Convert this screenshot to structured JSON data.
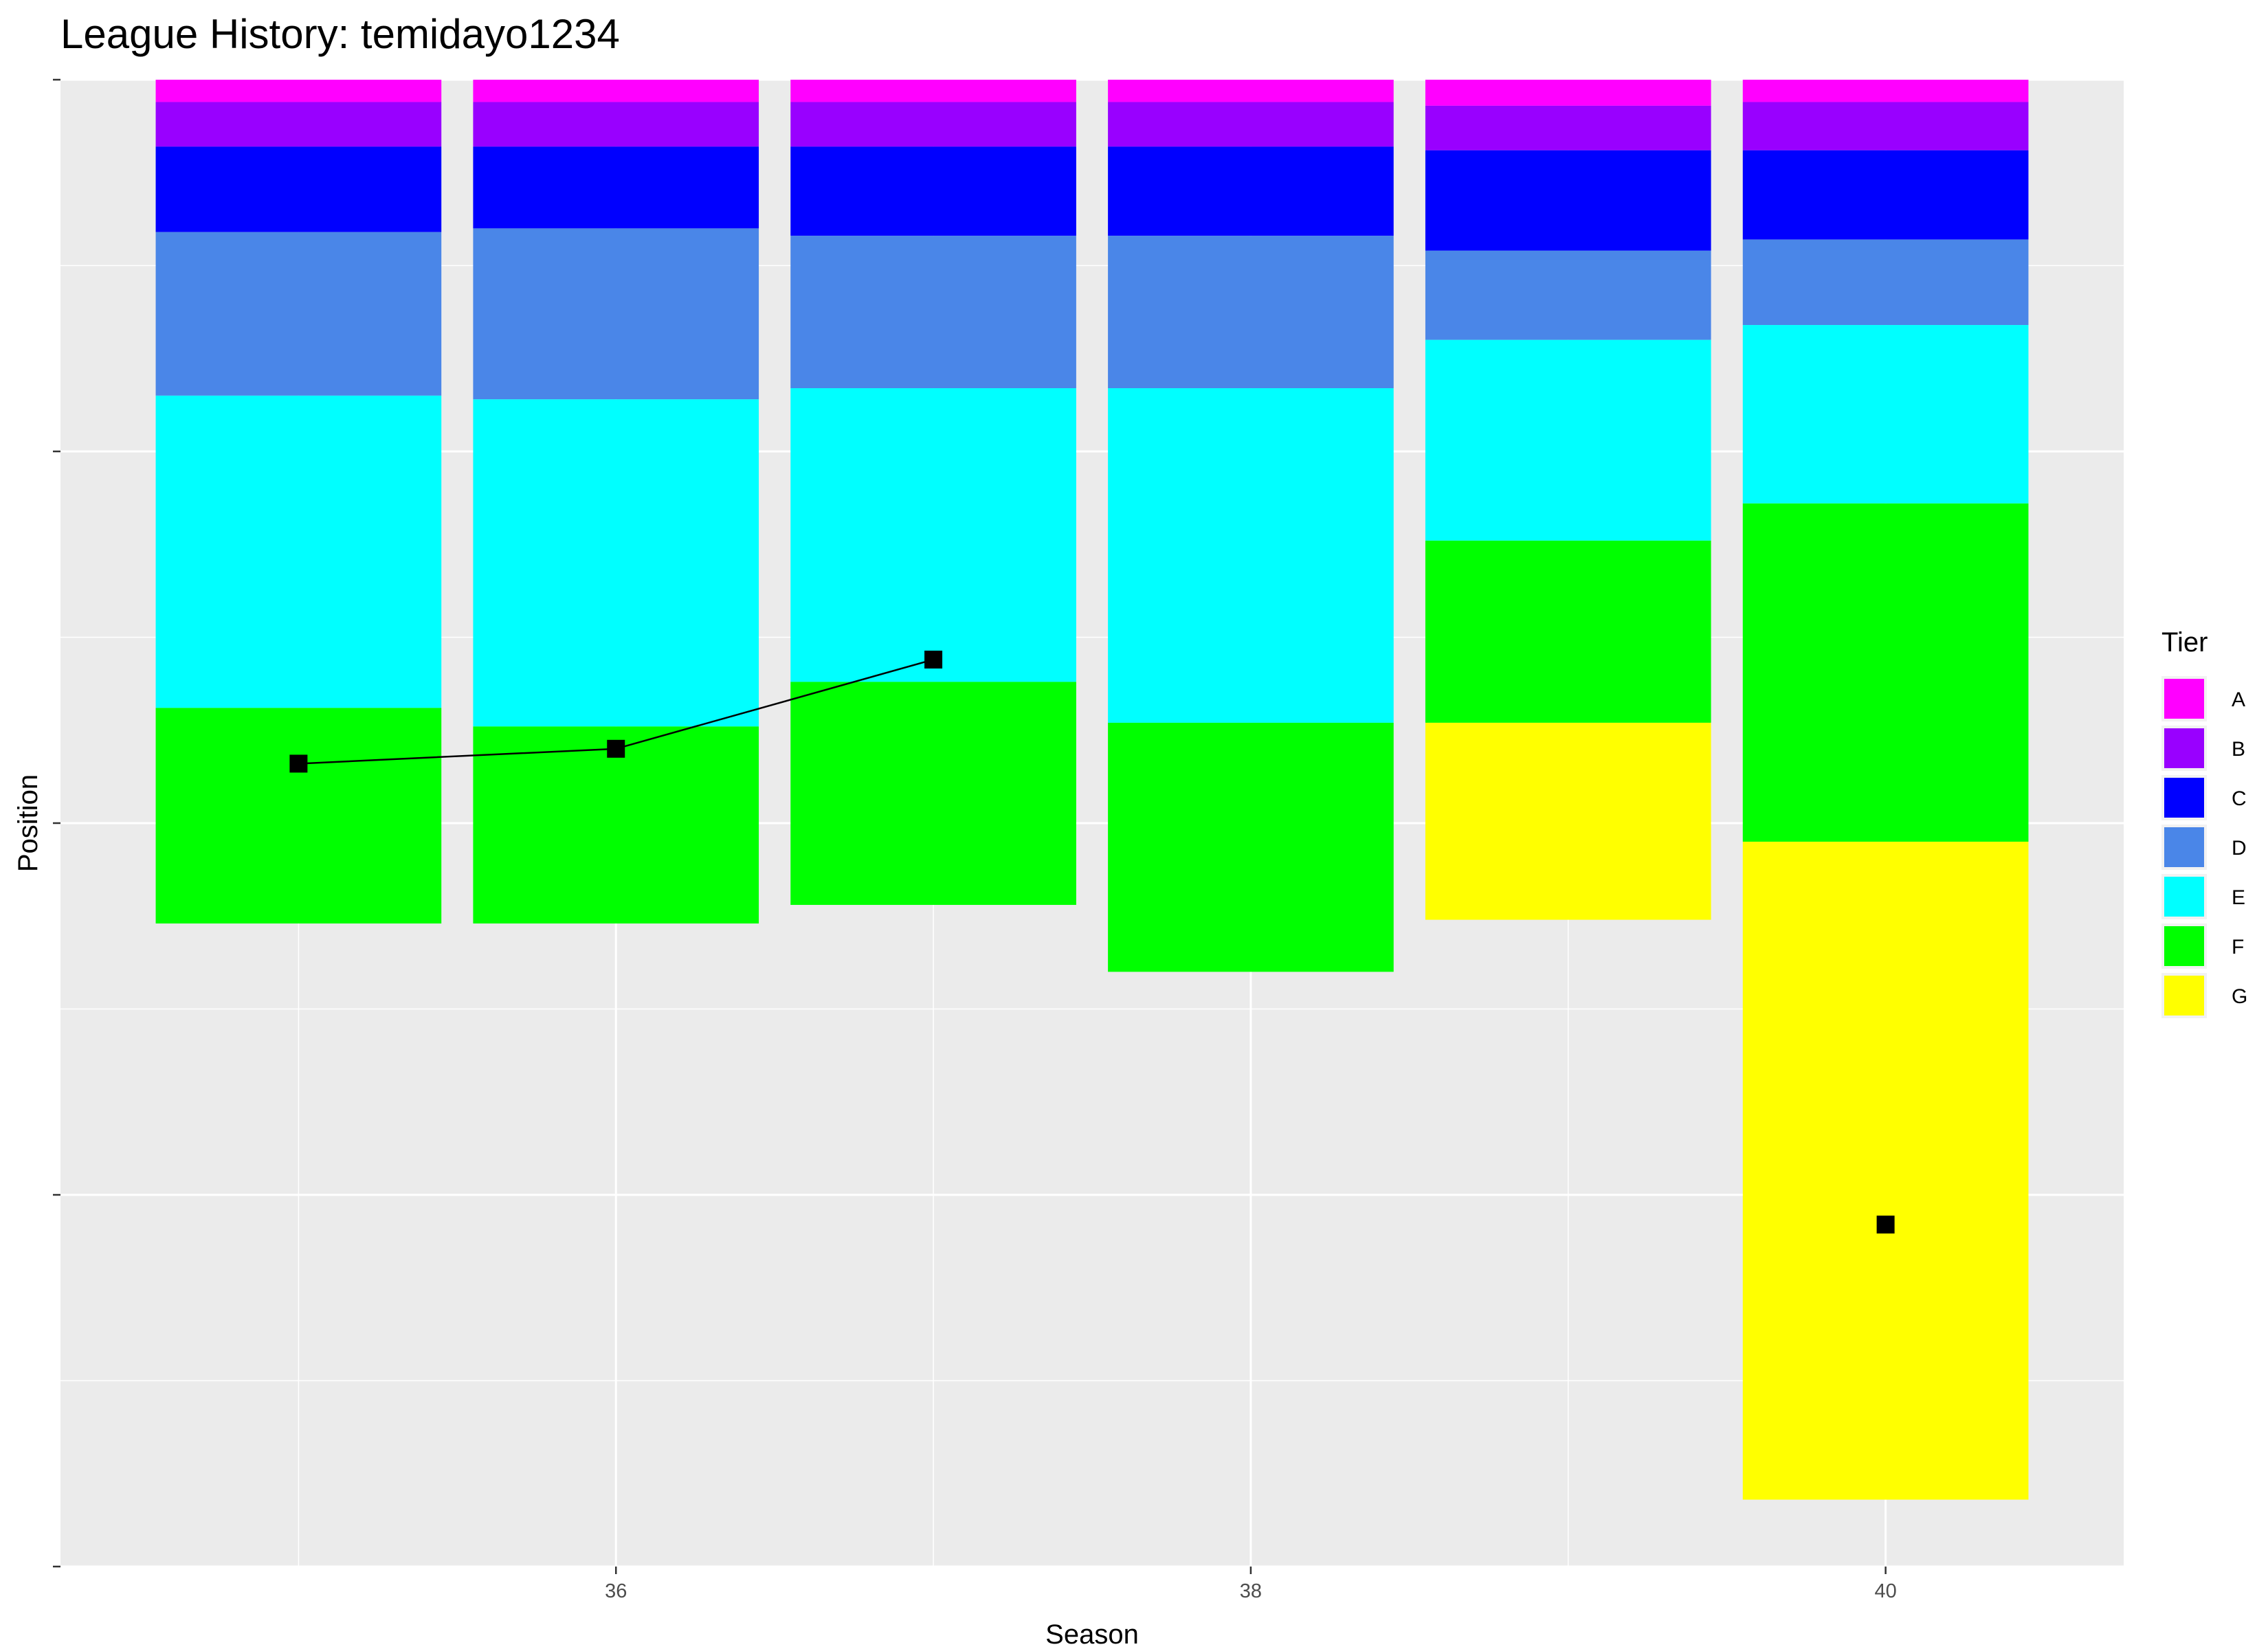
{
  "chart_data": {
    "type": "bar",
    "title": "League History: temidayo1234",
    "xlabel": "Season",
    "ylabel": "Position",
    "x_ticks": [
      "36",
      "38",
      "40"
    ],
    "xlim": [
      34.25,
      40.75
    ],
    "ylim": [
      -800,
      0
    ],
    "y_tick_labels_shown": false,
    "grid": true,
    "legend": {
      "title": "Tier",
      "position": "right",
      "items": [
        "A",
        "B",
        "C",
        "D",
        "E",
        "F",
        "G"
      ]
    },
    "tier_colors": {
      "A": "#ff00ff",
      "B": "#9900ff",
      "C": "#0000ff",
      "D": "#4a86e8",
      "E": "#00ffff",
      "F": "#00ff00",
      "G": "#ffff00"
    },
    "stacks": [
      {
        "season": 35,
        "tiers": [
          {
            "tier": "A",
            "count": 12
          },
          {
            "tier": "B",
            "count": 24
          },
          {
            "tier": "C",
            "count": 46
          },
          {
            "tier": "D",
            "count": 88
          },
          {
            "tier": "E",
            "count": 168
          },
          {
            "tier": "F",
            "count": 116
          }
        ]
      },
      {
        "season": 36,
        "tiers": [
          {
            "tier": "A",
            "count": 12
          },
          {
            "tier": "B",
            "count": 24
          },
          {
            "tier": "C",
            "count": 44
          },
          {
            "tier": "D",
            "count": 92
          },
          {
            "tier": "E",
            "count": 176
          },
          {
            "tier": "F",
            "count": 106
          }
        ]
      },
      {
        "season": 37,
        "tiers": [
          {
            "tier": "A",
            "count": 12
          },
          {
            "tier": "B",
            "count": 24
          },
          {
            "tier": "C",
            "count": 48
          },
          {
            "tier": "D",
            "count": 82
          },
          {
            "tier": "E",
            "count": 158
          },
          {
            "tier": "F",
            "count": 120
          }
        ]
      },
      {
        "season": 38,
        "tiers": [
          {
            "tier": "A",
            "count": 12
          },
          {
            "tier": "B",
            "count": 24
          },
          {
            "tier": "C",
            "count": 48
          },
          {
            "tier": "D",
            "count": 82
          },
          {
            "tier": "E",
            "count": 180
          },
          {
            "tier": "F",
            "count": 134
          }
        ]
      },
      {
        "season": 39,
        "tiers": [
          {
            "tier": "A",
            "count": 14
          },
          {
            "tier": "B",
            "count": 24
          },
          {
            "tier": "C",
            "count": 54
          },
          {
            "tier": "D",
            "count": 48
          },
          {
            "tier": "E",
            "count": 108
          },
          {
            "tier": "F",
            "count": 98
          },
          {
            "tier": "G",
            "count": 106
          }
        ]
      },
      {
        "season": 40,
        "tiers": [
          {
            "tier": "A",
            "count": 12
          },
          {
            "tier": "B",
            "count": 26
          },
          {
            "tier": "C",
            "count": 48
          },
          {
            "tier": "D",
            "count": 46
          },
          {
            "tier": "E",
            "count": 96
          },
          {
            "tier": "F",
            "count": 182
          },
          {
            "tier": "G",
            "count": 354
          }
        ]
      }
    ],
    "player_positions": [
      {
        "season": 35,
        "position": 368
      },
      {
        "season": 36,
        "position": 360
      },
      {
        "season": 37,
        "position": 312
      },
      {
        "season": 40,
        "position": 616
      }
    ],
    "player_line_segments": [
      [
        35,
        36,
        37
      ],
      [
        40
      ]
    ]
  }
}
